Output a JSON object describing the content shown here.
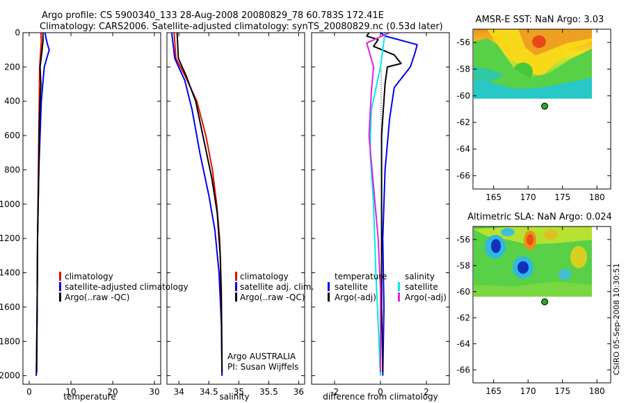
{
  "figure": {
    "title_line1": "Argo profile: CS 5900340_133 28-Aug-2008 20080829_78 60.783S 172.41E",
    "title_line2": "Climatology: CARS2006. Satellite-adjusted climatology: synTS_20080829.nc (0.53d later)",
    "side_stamp": "CSIRO 05-Sep-2008 10:30:51",
    "float_label_1": "Argo AUSTRALIA",
    "float_label_2": "PI: Susan Wijffels"
  },
  "colors": {
    "red": "#dd1100",
    "blue": "#0000ee",
    "black": "#000000",
    "cyan": "#00e8e8",
    "magenta": "#e020e0",
    "marker": "#22aa22"
  },
  "chart_data": [
    {
      "id": "temperature",
      "type": "line",
      "xlabel": "temperature",
      "ylabel": "",
      "xlim": [
        -1.5,
        31.5
      ],
      "ylim": [
        2050,
        0
      ],
      "xticks": [
        0,
        10,
        20,
        30
      ],
      "yticks": [
        0,
        200,
        400,
        600,
        800,
        1000,
        1200,
        1400,
        1600,
        1800,
        2000
      ],
      "legend": {
        "placement": "lower-right",
        "entries": [
          "climatology",
          "satellite-adjusted climatology",
          "Argo(..raw -QC)"
        ]
      },
      "series": [
        {
          "name": "climatology",
          "color": "red",
          "points": [
            [
              2.8,
              0
            ],
            [
              2.9,
              50
            ],
            [
              2.5,
              200
            ],
            [
              2.4,
              400
            ],
            [
              2.2,
              800
            ],
            [
              2.0,
              1200
            ],
            [
              1.9,
              1600
            ],
            [
              1.7,
              2000
            ]
          ]
        },
        {
          "name": "satellite-adjusted climatology",
          "color": "blue",
          "points": [
            [
              3.8,
              0
            ],
            [
              4.0,
              30
            ],
            [
              4.4,
              70
            ],
            [
              4.8,
              100
            ],
            [
              3.6,
              200
            ],
            [
              2.9,
              400
            ],
            [
              2.3,
              800
            ],
            [
              2.0,
              1200
            ],
            [
              1.9,
              1600
            ],
            [
              1.7,
              2000
            ]
          ]
        },
        {
          "name": "Argo(..raw -QC)",
          "color": "black",
          "points": [
            [
              3.3,
              0
            ],
            [
              3.3,
              50
            ],
            [
              3.0,
              120
            ],
            [
              2.6,
              200
            ],
            [
              2.8,
              300
            ],
            [
              2.6,
              400
            ],
            [
              2.4,
              550
            ],
            [
              2.3,
              800
            ],
            [
              2.0,
              1200
            ],
            [
              1.9,
              1600
            ],
            [
              1.8,
              1980
            ]
          ]
        }
      ]
    },
    {
      "id": "salinity",
      "type": "line",
      "xlabel": "salinity",
      "ylabel": "",
      "xlim": [
        33.8,
        36.1
      ],
      "ylim": [
        2050,
        0
      ],
      "xticks": [
        34,
        34.5,
        35,
        35.5,
        36
      ],
      "xtick_labels": [
        "34",
        "34.5",
        "35",
        "35.5",
        "36"
      ],
      "legend": {
        "placement": "lower-right",
        "entries": [
          "climatology",
          "satellite adj. clim.",
          "Argo(..raw -QC)"
        ]
      },
      "series": [
        {
          "name": "climatology",
          "color": "red",
          "points": [
            [
              33.92,
              0
            ],
            [
              33.95,
              150
            ],
            [
              34.1,
              250
            ],
            [
              34.3,
              400
            ],
            [
              34.45,
              600
            ],
            [
              34.56,
              800
            ],
            [
              34.63,
              1000
            ],
            [
              34.68,
              1200
            ],
            [
              34.71,
              1500
            ],
            [
              34.72,
              2000
            ]
          ]
        },
        {
          "name": "satellite adj. clim.",
          "color": "blue",
          "points": [
            [
              33.88,
              0
            ],
            [
              33.93,
              150
            ],
            [
              34.1,
              280
            ],
            [
              34.22,
              450
            ],
            [
              34.35,
              700
            ],
            [
              34.5,
              950
            ],
            [
              34.6,
              1150
            ],
            [
              34.67,
              1400
            ],
            [
              34.71,
              1700
            ],
            [
              34.72,
              2000
            ]
          ]
        },
        {
          "name": "Argo(..raw -QC)",
          "color": "black",
          "points": [
            [
              33.97,
              0
            ],
            [
              33.99,
              150
            ],
            [
              34.12,
              250
            ],
            [
              34.28,
              400
            ],
            [
              34.4,
              600
            ],
            [
              34.55,
              850
            ],
            [
              34.64,
              1050
            ],
            [
              34.69,
              1300
            ],
            [
              34.71,
              1600
            ],
            [
              34.72,
              1980
            ]
          ]
        }
      ]
    },
    {
      "id": "difference",
      "type": "line",
      "xlabel": "difference from climatology",
      "ylabel": "",
      "xlim": [
        -3.0,
        3.0
      ],
      "ylim": [
        2050,
        0
      ],
      "xticks": [
        -2,
        0,
        2
      ],
      "legend": {
        "placement": "lower",
        "entries": [
          "temperature",
          "satellite",
          "Argo(-adj)",
          "salinity",
          "satellite",
          "Argo(-adj)"
        ]
      },
      "series": [
        {
          "name": "satellite",
          "group": "temperature",
          "color": "blue",
          "points": [
            [
              0.0,
              0
            ],
            [
              0.2,
              20
            ],
            [
              1.6,
              70
            ],
            [
              1.5,
              120
            ],
            [
              1.3,
              200
            ],
            [
              0.6,
              320
            ],
            [
              0.4,
              500
            ],
            [
              0.2,
              800
            ],
            [
              0.1,
              1200
            ],
            [
              0.15,
              1600
            ],
            [
              0.1,
              2000
            ]
          ]
        },
        {
          "name": "Argo(-adj)",
          "group": "temperature",
          "color": "black",
          "points": [
            [
              -0.5,
              0
            ],
            [
              -0.6,
              20
            ],
            [
              -0.1,
              40
            ],
            [
              -0.3,
              80
            ],
            [
              0.6,
              130
            ],
            [
              0.9,
              180
            ],
            [
              0.3,
              200
            ],
            [
              0.2,
              300
            ],
            [
              0.05,
              600
            ],
            [
              0.05,
              1200
            ],
            [
              0.05,
              1600
            ],
            [
              0.1,
              1980
            ]
          ]
        },
        {
          "name": "satellite",
          "group": "salinity",
          "color": "cyan",
          "points": [
            [
              0.2,
              0
            ],
            [
              0.0,
              200
            ],
            [
              -0.4,
              450
            ],
            [
              -0.45,
              700
            ],
            [
              -0.3,
              1000
            ],
            [
              -0.2,
              1400
            ],
            [
              -0.1,
              1700
            ],
            [
              0.0,
              2000
            ]
          ]
        },
        {
          "name": "Argo(-adj)",
          "group": "salinity",
          "color": "magenta",
          "points": [
            [
              0.4,
              0
            ],
            [
              -0.6,
              60
            ],
            [
              -0.3,
              200
            ],
            [
              -0.4,
              350
            ],
            [
              -0.5,
              600
            ],
            [
              -0.3,
              900
            ],
            [
              -0.1,
              1200
            ],
            [
              0.0,
              1500
            ],
            [
              0.0,
              1980
            ]
          ]
        }
      ]
    },
    {
      "id": "sst-map",
      "type": "heatmap",
      "title": "AMSR-E SST: NaN Argo: 3.03",
      "xlim": [
        162,
        182
      ],
      "ylim": [
        -67,
        -55
      ],
      "xticks": [
        165,
        170,
        175,
        180
      ],
      "yticks": [
        -56,
        -58,
        -60,
        -62,
        -64,
        -66
      ],
      "data_extent": {
        "lon": [
          162,
          180
        ],
        "lat": [
          -60.2,
          -55
        ]
      },
      "argo_position": [
        172.41,
        -60.783
      ]
    },
    {
      "id": "sla-map",
      "type": "heatmap",
      "title": "Altimetric SLA: NaN Argo: 0.024",
      "xlim": [
        162,
        182
      ],
      "ylim": [
        -67,
        -55
      ],
      "xticks": [
        165,
        170,
        175,
        180
      ],
      "yticks": [
        -56,
        -58,
        -60,
        -62,
        -64,
        -66
      ],
      "data_extent": {
        "lon": [
          162,
          180
        ],
        "lat": [
          -60.2,
          -55
        ]
      },
      "argo_position": [
        172.41,
        -60.783
      ]
    }
  ]
}
